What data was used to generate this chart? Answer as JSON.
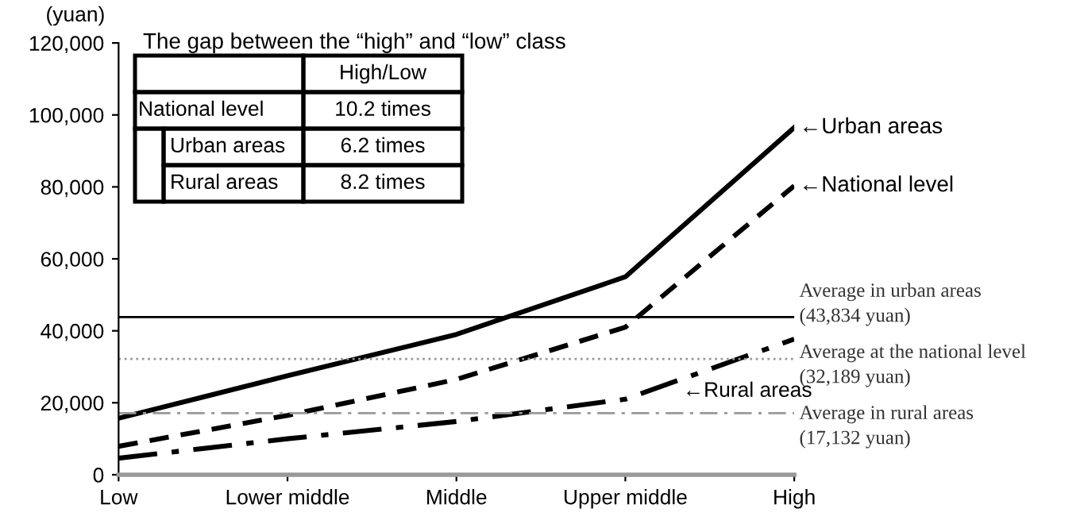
{
  "chart_data": {
    "type": "line",
    "ylabel": "(yuan)",
    "categories": [
      "Low",
      "Lower middle",
      "Middle",
      "Upper middle",
      "High"
    ],
    "series": [
      {
        "name": "←Urban areas",
        "color": "#000000",
        "line_style": "solid",
        "values": [
          15700,
          27500,
          39000,
          55000,
          96500
        ]
      },
      {
        "name": "←National level",
        "color": "#000000",
        "line_style": "dashed",
        "values": [
          7900,
          16500,
          26500,
          41000,
          80300
        ]
      },
      {
        "name": "←Rural areas",
        "color": "#000000",
        "line_style": "dashdot",
        "values": [
          4600,
          10000,
          14800,
          21000,
          37700
        ]
      }
    ],
    "ylim": [
      0,
      120000
    ],
    "yticks": [
      0,
      {
        "value": 20000,
        "label": "20,000"
      },
      {
        "value": 40000,
        "label": "40,000"
      },
      {
        "value": 60000,
        "label": "60,000"
      },
      {
        "value": 80000,
        "label": "80,000"
      },
      {
        "value": 100000,
        "label": "100,000"
      },
      {
        "value": 120000,
        "label": "120,000"
      }
    ],
    "ref_lines": [
      {
        "axis": "y",
        "value": 43834,
        "label": "Average in urban areas\n(43,834 yuan)",
        "color": "#000000",
        "line_style": "solid"
      },
      {
        "axis": "y",
        "value": 32189,
        "label": "Average at the national level\n(32,189 yuan)",
        "color": "#999999",
        "line_style": "dotted"
      },
      {
        "axis": "y",
        "value": 17132,
        "label": "Average in rural areas\n(17,132 yuan)",
        "color": "#999999",
        "line_style": "dashdot"
      }
    ],
    "annotations": [
      "The gap between the “high” and “low” class",
      "High/Low",
      "National level",
      "10.2 times",
      "Urban areas",
      "6.2 times",
      "Rural areas",
      "8.2 times"
    ],
    "grid": false,
    "legend": false,
    "marker": "none"
  }
}
